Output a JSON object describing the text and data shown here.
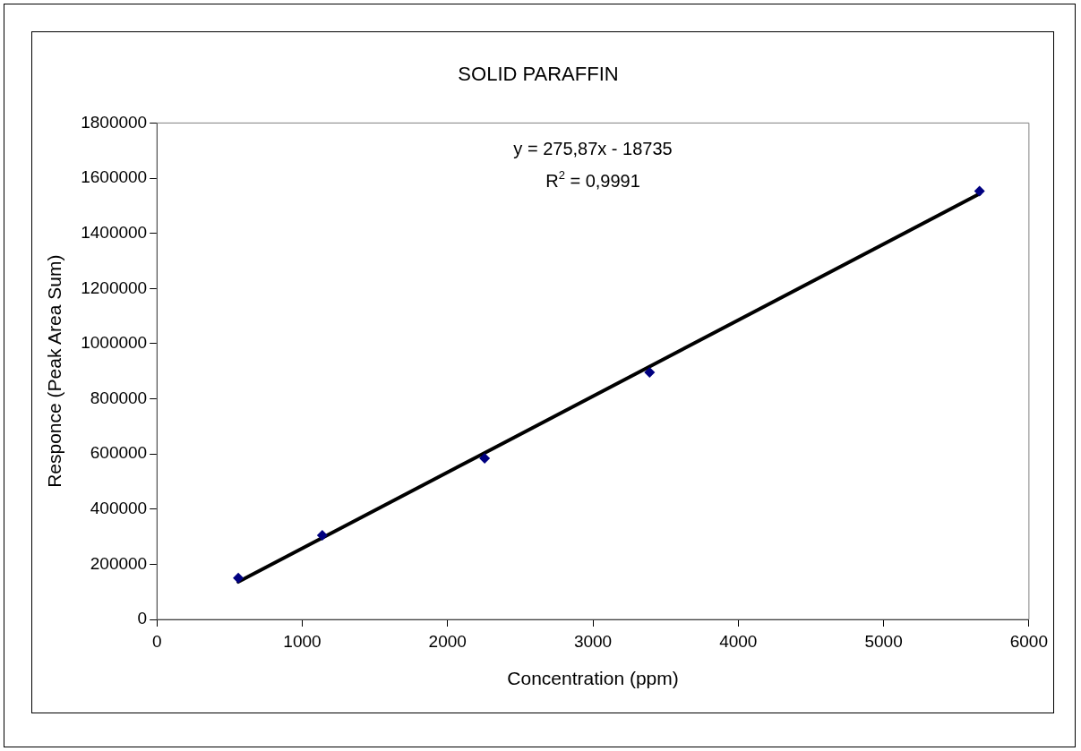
{
  "chart_data": {
    "type": "scatter",
    "title": "SOLID PARAFFIN",
    "xlabel": "Concentration (ppm)",
    "ylabel": "Responce (Peak Area Sum)",
    "annotations": [
      "y = 275,87x - 18735",
      "R$^{2}$ = 0,9991"
    ],
    "series": [
      {
        "color": "#000080",
        "x": [
          560,
          1138,
          2255,
          3390,
          5660
        ],
        "values": [
          150000,
          305000,
          584000,
          896000,
          1553000
        ]
      },
      {
        "type": "line",
        "color": "#000000",
        "x": [
          560,
          5660
        ],
        "values": [
          136000,
          1543000
        ],
        "marker": "none",
        "line_style": "solid"
      }
    ],
    "xlim": [
      0,
      6000
    ],
    "xticks": [
      0,
      1000,
      2000,
      3000,
      4000,
      5000,
      6000
    ],
    "ylim": [
      0,
      1800000
    ],
    "yticks": [
      0,
      200000,
      400000,
      600000,
      800000,
      1000000,
      1200000,
      1400000,
      1600000,
      1800000
    ],
    "grid": false,
    "legend": false,
    "marker": "diamond"
  }
}
